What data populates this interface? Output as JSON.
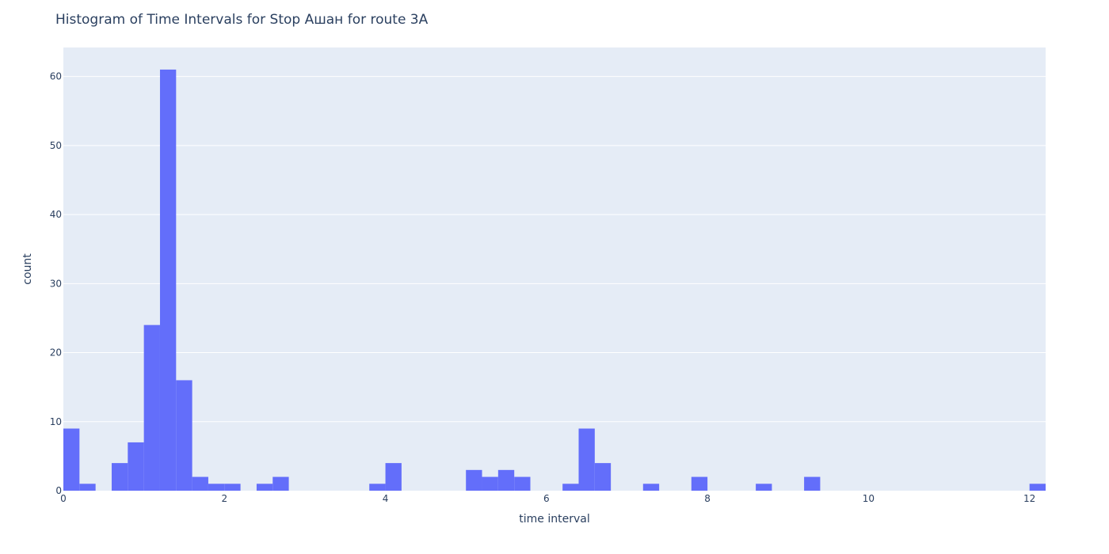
{
  "chart_data": {
    "type": "bar",
    "title": "Histogram of Time Intervals for Stop Ашан for route 3A",
    "xlabel": "time interval",
    "ylabel": "count",
    "xlim": [
      0,
      12.2
    ],
    "ylim": [
      0,
      64.2
    ],
    "bin_width": 0.2,
    "x_ticks": [
      0,
      2,
      4,
      6,
      8,
      10,
      12
    ],
    "y_ticks": [
      0,
      10,
      20,
      30,
      40,
      50,
      60
    ],
    "grid": true,
    "colors": {
      "bar": "#636efa",
      "plot_background": "#e5ecf6",
      "grid": "#ffffff",
      "text": "#2a3f5f"
    },
    "bins": [
      {
        "x0": 0.0,
        "x1": 0.2,
        "count": 9
      },
      {
        "x0": 0.2,
        "x1": 0.4,
        "count": 1
      },
      {
        "x0": 0.6,
        "x1": 0.8,
        "count": 4
      },
      {
        "x0": 0.8,
        "x1": 1.0,
        "count": 7
      },
      {
        "x0": 1.0,
        "x1": 1.2,
        "count": 24
      },
      {
        "x0": 1.2,
        "x1": 1.4,
        "count": 61
      },
      {
        "x0": 1.4,
        "x1": 1.6,
        "count": 16
      },
      {
        "x0": 1.6,
        "x1": 1.8,
        "count": 2
      },
      {
        "x0": 1.8,
        "x1": 2.0,
        "count": 1
      },
      {
        "x0": 2.0,
        "x1": 2.2,
        "count": 1
      },
      {
        "x0": 2.4,
        "x1": 2.6,
        "count": 1
      },
      {
        "x0": 2.6,
        "x1": 2.8,
        "count": 2
      },
      {
        "x0": 3.8,
        "x1": 4.0,
        "count": 1
      },
      {
        "x0": 4.0,
        "x1": 4.2,
        "count": 4
      },
      {
        "x0": 5.0,
        "x1": 5.2,
        "count": 3
      },
      {
        "x0": 5.2,
        "x1": 5.4,
        "count": 2
      },
      {
        "x0": 5.4,
        "x1": 5.6,
        "count": 3
      },
      {
        "x0": 5.6,
        "x1": 5.8,
        "count": 2
      },
      {
        "x0": 6.2,
        "x1": 6.4,
        "count": 1
      },
      {
        "x0": 6.4,
        "x1": 6.6,
        "count": 9
      },
      {
        "x0": 6.6,
        "x1": 6.8,
        "count": 4
      },
      {
        "x0": 7.2,
        "x1": 7.4,
        "count": 1
      },
      {
        "x0": 7.8,
        "x1": 8.0,
        "count": 2
      },
      {
        "x0": 8.6,
        "x1": 8.8,
        "count": 1
      },
      {
        "x0": 9.2,
        "x1": 9.4,
        "count": 2
      },
      {
        "x0": 12.0,
        "x1": 12.2,
        "count": 1
      }
    ]
  }
}
